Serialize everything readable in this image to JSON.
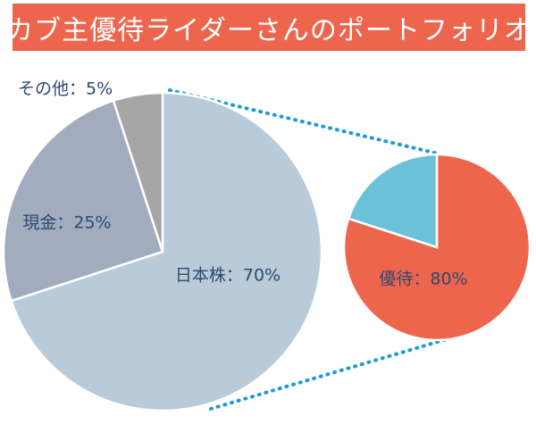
{
  "title": "カブ主優待ライダーさんのポートフォリオ",
  "colors": {
    "banner": "#EE654E",
    "title_text": "#FFFFFF",
    "label_text": "#2E4A6E",
    "connector": "#1E9BD7"
  },
  "chart_data": [
    {
      "type": "pie",
      "title": "",
      "slices": [
        {
          "label": "日本株",
          "value": 70,
          "display": "日本株：70%",
          "color": "#B9CBD8"
        },
        {
          "label": "現金",
          "value": 25,
          "display": "現金：25%",
          "color": "#A1ACBF"
        },
        {
          "label": "その他",
          "value": 5,
          "display": "その他：5%",
          "color": "#A6A6A6"
        }
      ]
    },
    {
      "type": "pie",
      "title": "",
      "slices": [
        {
          "label": "優待",
          "value": 80,
          "display": "優待：80%",
          "color": "#EE654E"
        },
        {
          "label": "",
          "value": 20,
          "display": "",
          "color": "#6BC1D8"
        }
      ]
    }
  ]
}
